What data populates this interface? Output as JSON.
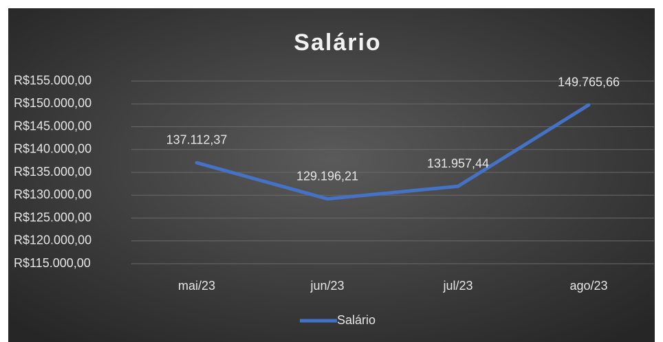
{
  "chart_data": {
    "type": "line",
    "title": "Salário",
    "categories": [
      "mai/23",
      "jun/23",
      "jul/23",
      "ago/23"
    ],
    "series": [
      {
        "name": "Salário",
        "color": "#4472c4",
        "values": [
          137112.37,
          129196.21,
          131957.44,
          149765.66
        ],
        "value_labels": [
          "137.112,37",
          "129.196,21",
          "131.957,44",
          "149.765,66"
        ]
      }
    ],
    "ylim": [
      115000,
      155000
    ],
    "yticks": [
      {
        "value": 115000,
        "label": "R$115.000,00"
      },
      {
        "value": 120000,
        "label": "R$120.000,00"
      },
      {
        "value": 125000,
        "label": "R$125.000,00"
      },
      {
        "value": 130000,
        "label": "R$130.000,00"
      },
      {
        "value": 135000,
        "label": "R$135.000,00"
      },
      {
        "value": 140000,
        "label": "R$140.000,00"
      },
      {
        "value": 145000,
        "label": "R$145.000,00"
      },
      {
        "value": 150000,
        "label": "R$150.000,00"
      },
      {
        "value": 155000,
        "label": "R$155.000,00"
      }
    ],
    "grid": true,
    "legend": "bottom"
  }
}
